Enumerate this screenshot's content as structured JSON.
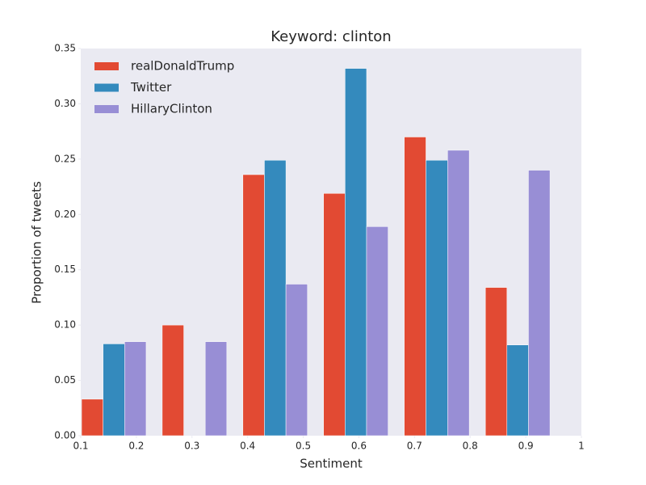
{
  "chart_data": {
    "type": "histogram",
    "title": "Keyword: clinton",
    "xlabel": "Sentiment",
    "ylabel": "Proportion of tweets",
    "bins": [
      0.087,
      0.232,
      0.377,
      0.522,
      0.667,
      0.813,
      0.958
    ],
    "series": [
      {
        "name": "realDonaldTrump",
        "color": "#E24A33",
        "values": [
          0.033,
          0.1,
          0.236,
          0.219,
          0.27,
          0.134
        ]
      },
      {
        "name": "Twitter",
        "color": "#348ABD",
        "values": [
          0.083,
          0,
          0.249,
          0.332,
          0.249,
          0.082
        ]
      },
      {
        "name": "HillaryClinton",
        "color": "#988ED5",
        "values": [
          0.085,
          0.085,
          0.137,
          0.189,
          0.258,
          0.24
        ]
      }
    ],
    "xlim": [
      0.1,
      1.0
    ],
    "xticks": [
      0.1,
      0.2,
      0.3,
      0.4,
      0.5,
      0.6,
      0.7,
      0.8,
      0.9,
      1.0
    ],
    "ylim": [
      0,
      0.35
    ],
    "yticks": [
      {
        "value": 0,
        "label": "0.00"
      },
      {
        "value": 0.05,
        "label": "0.05"
      },
      {
        "value": 0.1,
        "label": "0.10"
      },
      {
        "value": 0.15,
        "label": "0.15"
      },
      {
        "value": 0.2,
        "label": "0.20"
      },
      {
        "value": 0.25,
        "label": "0.25"
      },
      {
        "value": 0.3,
        "label": "0.30"
      },
      {
        "value": 0.35,
        "label": "0.35"
      }
    ],
    "grid": false,
    "legend": "upper left"
  }
}
